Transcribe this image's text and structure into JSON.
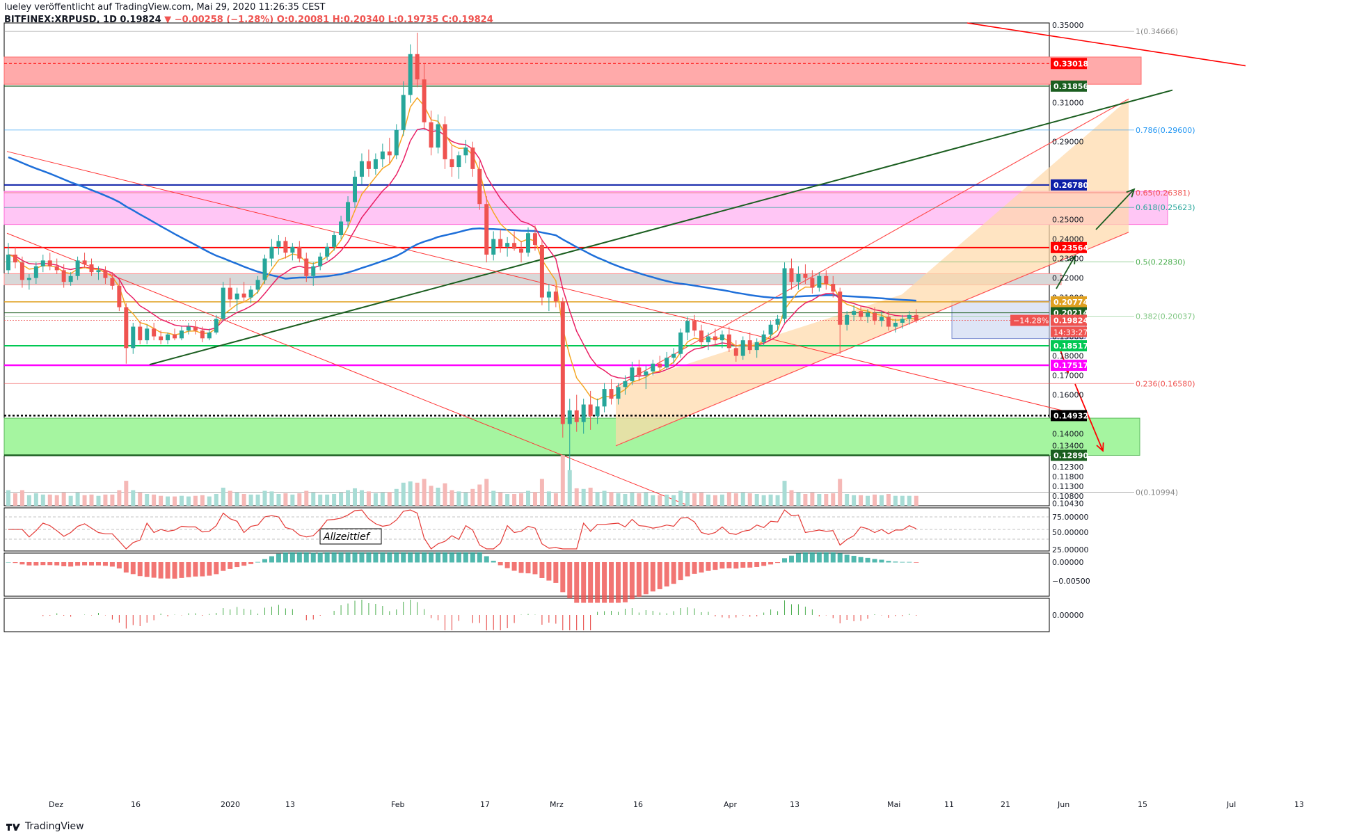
{
  "header": {
    "line1": "lueley veröffentlicht auf TradingView.com, Mai 29, 2020 11:26:35 CEST",
    "symbol": "BITFINEX:XRPUSD, 1D",
    "price": "0.19824",
    "change_icon": "down-triangle-icon",
    "change": "−0.00258 (−1.28%)",
    "open": "O:0.20081",
    "high": "H:0.20340",
    "low": "L:0.19735",
    "close": "C:0.19824"
  },
  "footer": {
    "brand": "TradingView",
    "logo_icon": "tradingview-logo-icon"
  },
  "colors": {
    "up": "#26a69a",
    "down": "#ef5350",
    "red_line": "#ff0000",
    "green_zone": "#a5f5a0",
    "red_zone": "#ffaaaa",
    "pink_zone": "#ffc6f5",
    "channel": "#ffd8a8",
    "ema_blue": "#1e6fd9",
    "ema_orange": "#f5a623",
    "ema_red": "#e91e63"
  },
  "chart_data": {
    "type": "candlestick",
    "symbol": "XRPUSD",
    "timeframe": "1D",
    "y_axis": {
      "range": [
        0.103,
        0.351
      ],
      "ticks": [
        "0.35000",
        "0.31000",
        "0.29000",
        "0.25000",
        "0.24000",
        "0.23000",
        "0.22000",
        "0.21000",
        "0.19000",
        "0.18000",
        "0.17000",
        "0.16000",
        "0.15000",
        "0.14000",
        "0.13400",
        "0.12300",
        "0.11800",
        "0.11300",
        "0.10800",
        "0.10430"
      ]
    },
    "x_axis": {
      "labels": [
        "Dez",
        "16",
        "2020",
        "13",
        "Feb",
        "17",
        "Mrz",
        "16",
        "Apr",
        "13",
        "Mai",
        "11",
        "21",
        "Jun",
        "15",
        "Jul",
        "13"
      ]
    },
    "price_tags": [
      {
        "text": "0.33018",
        "value": 0.33018,
        "color": "#ff0000"
      },
      {
        "text": "0.31856",
        "value": 0.31856,
        "color": "#1b5e20"
      },
      {
        "text": "0.26780",
        "value": 0.2678,
        "color": "#0d1fa8"
      },
      {
        "text": "0.23564",
        "value": 0.23564,
        "color": "#ff0000"
      },
      {
        "text": "0.20774",
        "value": 0.20774,
        "color": "#e0a020"
      },
      {
        "text": "0.20214",
        "value": 0.20214,
        "color": "#1b5e20"
      },
      {
        "text": "0.19824",
        "value": 0.19824,
        "color": "#ef5350"
      },
      {
        "text": "0.18517",
        "value": 0.18517,
        "color": "#00c853"
      },
      {
        "text": "0.17517",
        "value": 0.17517,
        "color": "#ff00ff"
      },
      {
        "text": "0.14932",
        "value": 0.14932,
        "color": "#000000"
      },
      {
        "text": "0.12890",
        "value": 0.1289,
        "color": "#1b5e20"
      }
    ],
    "change_percent_tag": "−14.28%",
    "countdown_tag": "14:33:27",
    "fib_levels": [
      {
        "text": "1(0.34666)",
        "value": 0.34666,
        "color": "#888888"
      },
      {
        "text": "0.786(0.29600)",
        "value": 0.296,
        "color": "#2196f3"
      },
      {
        "text": "0.65(0.26381)",
        "value": 0.26381,
        "color": "#ef5350"
      },
      {
        "text": "0.618(0.25623)",
        "value": 0.25623,
        "color": "#26a69a"
      },
      {
        "text": "0.5(0.22830)",
        "value": 0.2283,
        "color": "#4caf50"
      },
      {
        "text": "0.382(0.20037)",
        "value": 0.20037,
        "color": "#81c784"
      },
      {
        "text": "0.236(0.16580)",
        "value": 0.1658,
        "color": "#ef5350"
      },
      {
        "text": "0(0.10994)",
        "value": 0.10994,
        "color": "#888888"
      }
    ],
    "annotation": "Allzeittief",
    "rsi_axis": [
      "75.00000",
      "50.00000",
      "25.00000"
    ],
    "macd_axis": [
      "0.00000",
      "−0.00500"
    ],
    "osc_axis": [
      "0.00000"
    ],
    "candles": [
      [
        0.224,
        0.238,
        0.222,
        0.232
      ],
      [
        0.232,
        0.236,
        0.225,
        0.228
      ],
      [
        0.228,
        0.231,
        0.215,
        0.219
      ],
      [
        0.219,
        0.222,
        0.214,
        0.22
      ],
      [
        0.22,
        0.228,
        0.217,
        0.226
      ],
      [
        0.226,
        0.232,
        0.223,
        0.229
      ],
      [
        0.229,
        0.233,
        0.224,
        0.226
      ],
      [
        0.226,
        0.23,
        0.222,
        0.224
      ],
      [
        0.224,
        0.227,
        0.215,
        0.218
      ],
      [
        0.218,
        0.223,
        0.216,
        0.221
      ],
      [
        0.221,
        0.231,
        0.219,
        0.229
      ],
      [
        0.229,
        0.233,
        0.225,
        0.227
      ],
      [
        0.227,
        0.23,
        0.221,
        0.223
      ],
      [
        0.223,
        0.226,
        0.219,
        0.224
      ],
      [
        0.224,
        0.226,
        0.217,
        0.22
      ],
      [
        0.22,
        0.223,
        0.214,
        0.216
      ],
      [
        0.216,
        0.219,
        0.203,
        0.205
      ],
      [
        0.205,
        0.207,
        0.176,
        0.184
      ],
      [
        0.184,
        0.197,
        0.181,
        0.195
      ],
      [
        0.195,
        0.198,
        0.186,
        0.188
      ],
      [
        0.188,
        0.196,
        0.186,
        0.194
      ],
      [
        0.194,
        0.197,
        0.188,
        0.19
      ],
      [
        0.19,
        0.193,
        0.186,
        0.188
      ],
      [
        0.188,
        0.192,
        0.186,
        0.191
      ],
      [
        0.191,
        0.194,
        0.188,
        0.189
      ],
      [
        0.189,
        0.195,
        0.188,
        0.193
      ],
      [
        0.193,
        0.197,
        0.191,
        0.195
      ],
      [
        0.195,
        0.198,
        0.191,
        0.193
      ],
      [
        0.193,
        0.195,
        0.187,
        0.189
      ],
      [
        0.189,
        0.194,
        0.188,
        0.192
      ],
      [
        0.192,
        0.201,
        0.191,
        0.199
      ],
      [
        0.199,
        0.218,
        0.198,
        0.215
      ],
      [
        0.215,
        0.22,
        0.205,
        0.209
      ],
      [
        0.209,
        0.215,
        0.203,
        0.212
      ],
      [
        0.212,
        0.218,
        0.208,
        0.21
      ],
      [
        0.21,
        0.216,
        0.207,
        0.214
      ],
      [
        0.214,
        0.221,
        0.212,
        0.219
      ],
      [
        0.219,
        0.232,
        0.217,
        0.23
      ],
      [
        0.23,
        0.24,
        0.226,
        0.236
      ],
      [
        0.236,
        0.242,
        0.232,
        0.239
      ],
      [
        0.239,
        0.241,
        0.23,
        0.233
      ],
      [
        0.233,
        0.238,
        0.229,
        0.236
      ],
      [
        0.236,
        0.239,
        0.228,
        0.23
      ],
      [
        0.23,
        0.233,
        0.218,
        0.221
      ],
      [
        0.221,
        0.228,
        0.216,
        0.226
      ],
      [
        0.226,
        0.233,
        0.224,
        0.231
      ],
      [
        0.231,
        0.238,
        0.229,
        0.236
      ],
      [
        0.236,
        0.244,
        0.234,
        0.242
      ],
      [
        0.242,
        0.252,
        0.24,
        0.249
      ],
      [
        0.249,
        0.262,
        0.246,
        0.259
      ],
      [
        0.259,
        0.275,
        0.256,
        0.272
      ],
      [
        0.272,
        0.284,
        0.268,
        0.28
      ],
      [
        0.28,
        0.286,
        0.272,
        0.276
      ],
      [
        0.276,
        0.284,
        0.273,
        0.281
      ],
      [
        0.281,
        0.289,
        0.277,
        0.285
      ],
      [
        0.285,
        0.292,
        0.279,
        0.283
      ],
      [
        0.283,
        0.299,
        0.281,
        0.296
      ],
      [
        0.296,
        0.321,
        0.293,
        0.314
      ],
      [
        0.314,
        0.34,
        0.31,
        0.335
      ],
      [
        0.335,
        0.346,
        0.318,
        0.322
      ],
      [
        0.322,
        0.33,
        0.296,
        0.3
      ],
      [
        0.3,
        0.306,
        0.283,
        0.287
      ],
      [
        0.287,
        0.304,
        0.284,
        0.299
      ],
      [
        0.299,
        0.303,
        0.276,
        0.281
      ],
      [
        0.281,
        0.288,
        0.272,
        0.277
      ],
      [
        0.277,
        0.285,
        0.271,
        0.283
      ],
      [
        0.283,
        0.291,
        0.279,
        0.287
      ],
      [
        0.287,
        0.29,
        0.272,
        0.276
      ],
      [
        0.276,
        0.28,
        0.255,
        0.258
      ],
      [
        0.258,
        0.262,
        0.228,
        0.232
      ],
      [
        0.232,
        0.244,
        0.229,
        0.24
      ],
      [
        0.24,
        0.245,
        0.233,
        0.236
      ],
      [
        0.236,
        0.241,
        0.231,
        0.238
      ],
      [
        0.238,
        0.244,
        0.234,
        0.235
      ],
      [
        0.235,
        0.239,
        0.228,
        0.233
      ],
      [
        0.233,
        0.246,
        0.231,
        0.243
      ],
      [
        0.243,
        0.247,
        0.234,
        0.237
      ],
      [
        0.237,
        0.24,
        0.206,
        0.21
      ],
      [
        0.21,
        0.217,
        0.203,
        0.213
      ],
      [
        0.213,
        0.216,
        0.205,
        0.208
      ],
      [
        0.208,
        0.21,
        0.138,
        0.145
      ],
      [
        0.145,
        0.158,
        0.11,
        0.152
      ],
      [
        0.152,
        0.16,
        0.141,
        0.146
      ],
      [
        0.146,
        0.158,
        0.14,
        0.155
      ],
      [
        0.155,
        0.162,
        0.142,
        0.149
      ],
      [
        0.149,
        0.158,
        0.145,
        0.154
      ],
      [
        0.154,
        0.166,
        0.151,
        0.163
      ],
      [
        0.163,
        0.168,
        0.155,
        0.158
      ],
      [
        0.158,
        0.166,
        0.155,
        0.164
      ],
      [
        0.164,
        0.17,
        0.16,
        0.167
      ],
      [
        0.167,
        0.177,
        0.165,
        0.174
      ],
      [
        0.174,
        0.178,
        0.167,
        0.17
      ],
      [
        0.17,
        0.175,
        0.163,
        0.172
      ],
      [
        0.172,
        0.178,
        0.17,
        0.176
      ],
      [
        0.176,
        0.18,
        0.172,
        0.174
      ],
      [
        0.174,
        0.182,
        0.173,
        0.179
      ],
      [
        0.179,
        0.184,
        0.176,
        0.181
      ],
      [
        0.181,
        0.194,
        0.179,
        0.192
      ],
      [
        0.192,
        0.2,
        0.188,
        0.198
      ],
      [
        0.198,
        0.201,
        0.19,
        0.193
      ],
      [
        0.193,
        0.196,
        0.184,
        0.187
      ],
      [
        0.187,
        0.192,
        0.183,
        0.19
      ],
      [
        0.19,
        0.194,
        0.186,
        0.188
      ],
      [
        0.188,
        0.193,
        0.184,
        0.191
      ],
      [
        0.191,
        0.195,
        0.182,
        0.184
      ],
      [
        0.184,
        0.188,
        0.177,
        0.18
      ],
      [
        0.18,
        0.19,
        0.178,
        0.188
      ],
      [
        0.188,
        0.192,
        0.181,
        0.183
      ],
      [
        0.183,
        0.189,
        0.179,
        0.187
      ],
      [
        0.187,
        0.193,
        0.185,
        0.191
      ],
      [
        0.191,
        0.198,
        0.189,
        0.196
      ],
      [
        0.196,
        0.201,
        0.193,
        0.199
      ],
      [
        0.199,
        0.228,
        0.197,
        0.225
      ],
      [
        0.225,
        0.23,
        0.214,
        0.218
      ],
      [
        0.218,
        0.226,
        0.214,
        0.222
      ],
      [
        0.222,
        0.227,
        0.217,
        0.22
      ],
      [
        0.22,
        0.224,
        0.212,
        0.215
      ],
      [
        0.215,
        0.223,
        0.213,
        0.221
      ],
      [
        0.221,
        0.224,
        0.214,
        0.217
      ],
      [
        0.217,
        0.221,
        0.21,
        0.213
      ],
      [
        0.213,
        0.215,
        0.181,
        0.196
      ],
      [
        0.196,
        0.203,
        0.193,
        0.201
      ],
      [
        0.201,
        0.206,
        0.198,
        0.203
      ],
      [
        0.203,
        0.206,
        0.198,
        0.2
      ],
      [
        0.2,
        0.204,
        0.197,
        0.202
      ],
      [
        0.202,
        0.205,
        0.196,
        0.198
      ],
      [
        0.198,
        0.203,
        0.195,
        0.2
      ],
      [
        0.2,
        0.203,
        0.193,
        0.195
      ],
      [
        0.195,
        0.199,
        0.192,
        0.197
      ],
      [
        0.197,
        0.201,
        0.194,
        0.199
      ],
      [
        0.199,
        0.203,
        0.196,
        0.201
      ],
      [
        0.201,
        0.204,
        0.197,
        0.198
      ]
    ]
  }
}
